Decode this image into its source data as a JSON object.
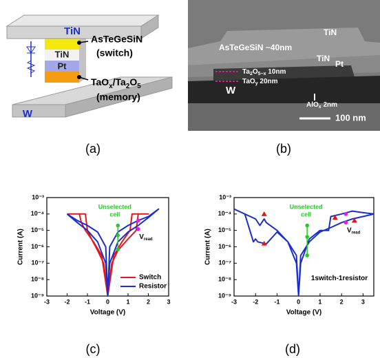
{
  "panel_labels": [
    "(a)",
    "(b)",
    "(c)",
    "(d)"
  ],
  "diagram": {
    "top_electrode": "TiN",
    "middle_electrode": "TiN",
    "pt": "Pt",
    "bottom_electrode": "W",
    "switch_material": "AsTeGeSiN",
    "switch_role": "(switch)",
    "memory_material": [
      "TaO",
      "x",
      "/Ta",
      "2",
      "O",
      "5"
    ],
    "memory_role": "(memory)"
  },
  "sem": {
    "labels": [
      "TiN",
      "AsTeGeSiN ~40nm",
      "TiN",
      "Pt",
      [
        "Ta",
        "2",
        "O",
        "5−x",
        " 10nm"
      ],
      [
        "TaO",
        "y",
        " 20nm"
      ],
      "W",
      [
        "AlO",
        "x",
        " 2nm"
      ]
    ],
    "scale_bar": "100 nm"
  },
  "chart_data": [
    {
      "type": "line",
      "xlabel": "Voltage (V)",
      "ylabel": "Current (A)",
      "log_y": true,
      "xlim": [
        -3,
        3
      ],
      "xticks": [
        -3,
        -2,
        -1,
        0,
        1,
        2,
        3
      ],
      "ylim": [
        1e-09,
        0.001
      ],
      "yticks": [
        {
          "value": 1e-09,
          "label": "10⁻⁹"
        },
        {
          "value": 1e-08,
          "label": "10⁻⁸"
        },
        {
          "value": 1e-07,
          "label": "10⁻⁷"
        },
        {
          "value": 1e-06,
          "label": "10⁻⁶"
        },
        {
          "value": 1e-05,
          "label": "10⁻⁵"
        },
        {
          "value": 0.0001,
          "label": "10⁻⁴"
        },
        {
          "value": 0.001,
          "label": "10⁻³"
        }
      ],
      "legend": "lower right",
      "series": [
        {
          "name": "Switch",
          "color": "#e8141c",
          "x": [
            -2,
            -1.1,
            -1.0,
            -0.8,
            -0.5,
            -0.2,
            0,
            0.2,
            0.5,
            1.0,
            1.4,
            1.5,
            2.0,
            1.2,
            1.1,
            0.7,
            0.3,
            0,
            -0.3,
            -0.7,
            -1.1,
            -1.3,
            -1.4,
            -2
          ],
          "values": [
            0.0001,
            0.0001,
            1e-05,
            3e-06,
            6e-07,
            1e-07,
            1e-09,
            1e-07,
            6e-07,
            3e-06,
            1e-05,
            0.0001,
            0.0001,
            0.0001,
            1e-05,
            2e-06,
            3e-07,
            1e-09,
            3e-07,
            2e-06,
            1e-05,
            3e-05,
            0.0001,
            0.0001
          ]
        },
        {
          "name": "Resistor",
          "color": "#1a2ecc",
          "x": [
            -2,
            -1.5,
            -1,
            -0.5,
            -0.1,
            0,
            0.1,
            0.5,
            1,
            1.5,
            2,
            2.5,
            2,
            1.5,
            1,
            0.5,
            0.1,
            0,
            -0.1,
            -0.5,
            -1,
            -1.5,
            -2
          ],
          "values": [
            0.0001,
            3e-05,
            1e-05,
            2e-06,
            1e-07,
            1e-09,
            1e-07,
            2e-06,
            8e-06,
            2e-05,
            6e-05,
            0.0002,
            7e-05,
            4e-05,
            2e-05,
            8e-06,
            1e-06,
            1e-09,
            1e-06,
            8e-06,
            2e-05,
            4e-05,
            0.0001
          ]
        }
      ],
      "points": [
        {
          "color": "#22cc22",
          "line": true,
          "shape": "circle",
          "x": [
            0.5,
            0.5,
            0.5
          ],
          "values": [
            2e-05,
            5e-06,
            7e-07
          ]
        },
        {
          "color": "#e020e0",
          "line": false,
          "shape": "circle",
          "x": [
            1.5,
            1.5
          ],
          "values": [
            4e-05,
            1.2e-05
          ]
        }
      ],
      "annotation": [
        "Unselected",
        "cell"
      ],
      "read_label": {
        "main": "V",
        "sub": "read"
      }
    },
    {
      "type": "line",
      "xlabel": "Voltage (V)",
      "ylabel": "Current (A)",
      "log_y": true,
      "xlim": [
        -3,
        3.5
      ],
      "xticks": [
        -3,
        -2,
        -1,
        0,
        1,
        2,
        3
      ],
      "ylim": [
        1e-09,
        0.001
      ],
      "yticks": [
        {
          "value": 1e-09,
          "label": "10⁻⁹"
        },
        {
          "value": 1e-08,
          "label": "10⁻⁸"
        },
        {
          "value": 1e-07,
          "label": "10⁻⁷"
        },
        {
          "value": 1e-06,
          "label": "10⁻⁶"
        },
        {
          "value": 1e-05,
          "label": "10⁻⁵"
        },
        {
          "value": 0.0001,
          "label": "10⁻⁴"
        },
        {
          "value": 0.001,
          "label": "10⁻³"
        }
      ],
      "series": [
        {
          "color": "#1a2ecc",
          "x": [
            -3,
            -2.5,
            -2,
            -1.8,
            -1.6,
            -1.5,
            -1,
            -0.5,
            -0.1,
            0,
            0.1,
            0.5,
            1,
            1.4,
            1.5,
            2,
            2.5,
            3,
            3.5,
            3,
            2.5,
            2,
            1.5,
            1,
            0.5,
            0.1,
            0,
            -0.1,
            -0.5,
            -1,
            -1.5,
            -1.9,
            -2,
            -2.1,
            -2.5,
            -3
          ],
          "values": [
            0.0002,
            0.0001,
            5e-05,
            2e-05,
            5e-05,
            3e-05,
            1e-05,
            2e-06,
            1e-07,
            1e-09,
            1e-07,
            3e-06,
            1e-05,
            1e-05,
            7e-05,
            0.0001,
            0.00015,
            0.00012,
            0.0001,
            7e-05,
            5e-05,
            3e-05,
            1.5e-05,
            8e-06,
            2e-06,
            3e-07,
            1e-09,
            3e-07,
            2e-06,
            8e-06,
            1.5e-06,
            2e-06,
            3e-06,
            2e-06,
            0.0001,
            0.0002
          ]
        }
      ],
      "points": [
        {
          "color": "#22cc22",
          "line": true,
          "shape": "circle",
          "x": [
            0.4,
            0.4,
            0.4
          ],
          "values": [
            2e-05,
            4e-06,
            3e-07
          ]
        },
        {
          "color": "#e020e0",
          "line": false,
          "shape": "circle",
          "x": [
            2.2,
            2.2
          ],
          "values": [
            0.0001,
            3e-05
          ]
        },
        {
          "color": "#e8141c",
          "line": false,
          "shape": "triangle",
          "x": [
            -1.6,
            -1.6,
            1.7,
            2.6
          ],
          "values": [
            0.0001,
            1.6e-06,
            6e-05,
            4e-05
          ]
        }
      ],
      "annotation": [
        "Unselected",
        "cell"
      ],
      "read_label": {
        "main": "V",
        "sub": "read"
      },
      "note": "1switch-1resistor"
    }
  ]
}
